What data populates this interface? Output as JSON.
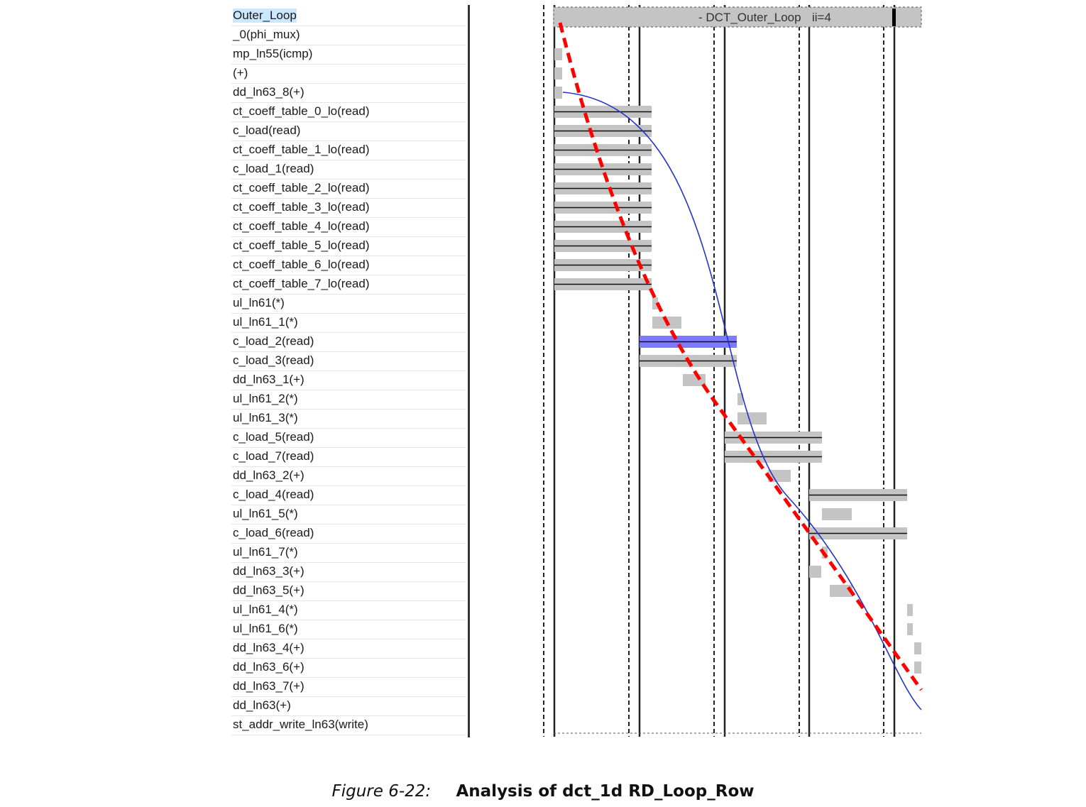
{
  "loop": {
    "name": "- DCT_Outer_Loop",
    "ii": "ii=4"
  },
  "operations": [
    "Outer_Loop",
    "_0(phi_mux)",
    "mp_ln55(icmp)",
    "(+)",
    "dd_ln63_8(+)",
    "ct_coeff_table_0_lo(read)",
    "c_load(read)",
    "ct_coeff_table_1_lo(read)",
    "c_load_1(read)",
    "ct_coeff_table_2_lo(read)",
    "ct_coeff_table_3_lo(read)",
    "ct_coeff_table_4_lo(read)",
    "ct_coeff_table_5_lo(read)",
    "ct_coeff_table_6_lo(read)",
    "ct_coeff_table_7_lo(read)",
    "ul_ln61(*)",
    "ul_ln61_1(*)",
    "c_load_2(read)",
    "c_load_3(read)",
    "dd_ln63_1(+)",
    "ul_ln61_2(*)",
    "ul_ln61_3(*)",
    "c_load_5(read)",
    "c_load_7(read)",
    "dd_ln63_2(+)",
    "c_load_4(read)",
    "ul_ln61_5(*)",
    "c_load_6(read)",
    "ul_ln61_7(*)",
    "dd_ln63_3(+)",
    "dd_ln63_5(+)",
    "ul_ln61_4(*)",
    "ul_ln61_6(*)",
    "dd_ln63_4(+)",
    "dd_ln63_6(+)",
    "dd_ln63_7(+)",
    "dd_ln63(+)",
    "st_addr_write_ln63(write)"
  ],
  "selected_operation_index": 0,
  "colors": {
    "bar": "#c4c4c4",
    "highlight_bar": "#7b7bff",
    "trend_dashed": "#ff0000",
    "trend_curve": "#2233cc",
    "selection": "#cce8ff"
  },
  "caption": {
    "number": "Figure 6-22:",
    "title": "Analysis of dct_1d RD_Loop_Row"
  }
}
